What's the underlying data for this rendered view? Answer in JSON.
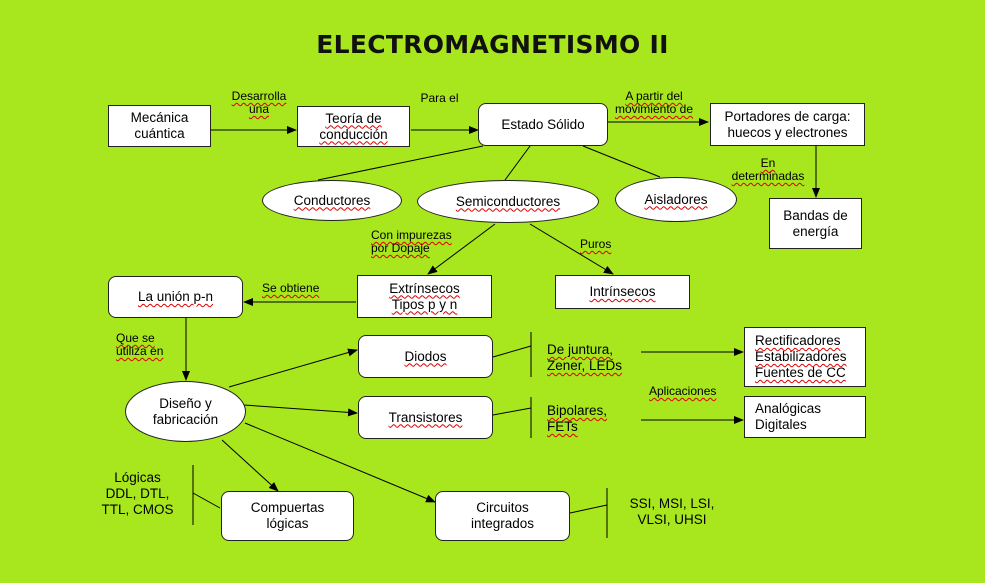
{
  "title": "ELECTROMAGNETISMO II",
  "nodes": {
    "mecanica": "Mecánica\ncuántica",
    "teoria": "Teoría de\nconducción",
    "estado": "Estado Sólido",
    "portadores": "Portadores de carga:\nhuecos y electrones",
    "bandas": "Bandas de\nenergía",
    "conductores": "Conductores",
    "semiconductores": "Semiconductores",
    "aisladores": "Aisladores",
    "extrinsecos": "Extrínsecos\nTipos p y n",
    "intrinsecos": "Intrínsecos",
    "union": "La unión p-n",
    "diseno": "Diseño y\nfabricación",
    "diodos": "Diodos",
    "transistores": "Transistores",
    "compuertas": "Compuertas\nlógicas",
    "circuitos": "Circuitos\nintegrados",
    "rectificadores": "Rectificadores\nEstabilizadores\nFuentes de CC",
    "analogicas": "Analógicas\nDigitales"
  },
  "labels": {
    "desarrolla": "Desarrolla\nuna",
    "para_el": "Para el",
    "a_partir": "A partir del\nmovimiento de",
    "en_determinadas": "En\ndeterminadas",
    "con_impurezas": "Con impurezas\npor Dopaje",
    "puros": "Puros",
    "se_obtiene": "Se obtiene",
    "que_se_utiliza": "Que se\nutiliza en",
    "aplicaciones": "Aplicaciones"
  },
  "lists": {
    "de_juntura": "De juntura,\nZener, LEDs",
    "bipolares": "Bipolares,\nFETs",
    "logicas": "Lógicas\nDDL, DTL,\nTTL, CMOS",
    "ssi": "SSI, MSI, LSI,\nVLSI, UHSI"
  }
}
